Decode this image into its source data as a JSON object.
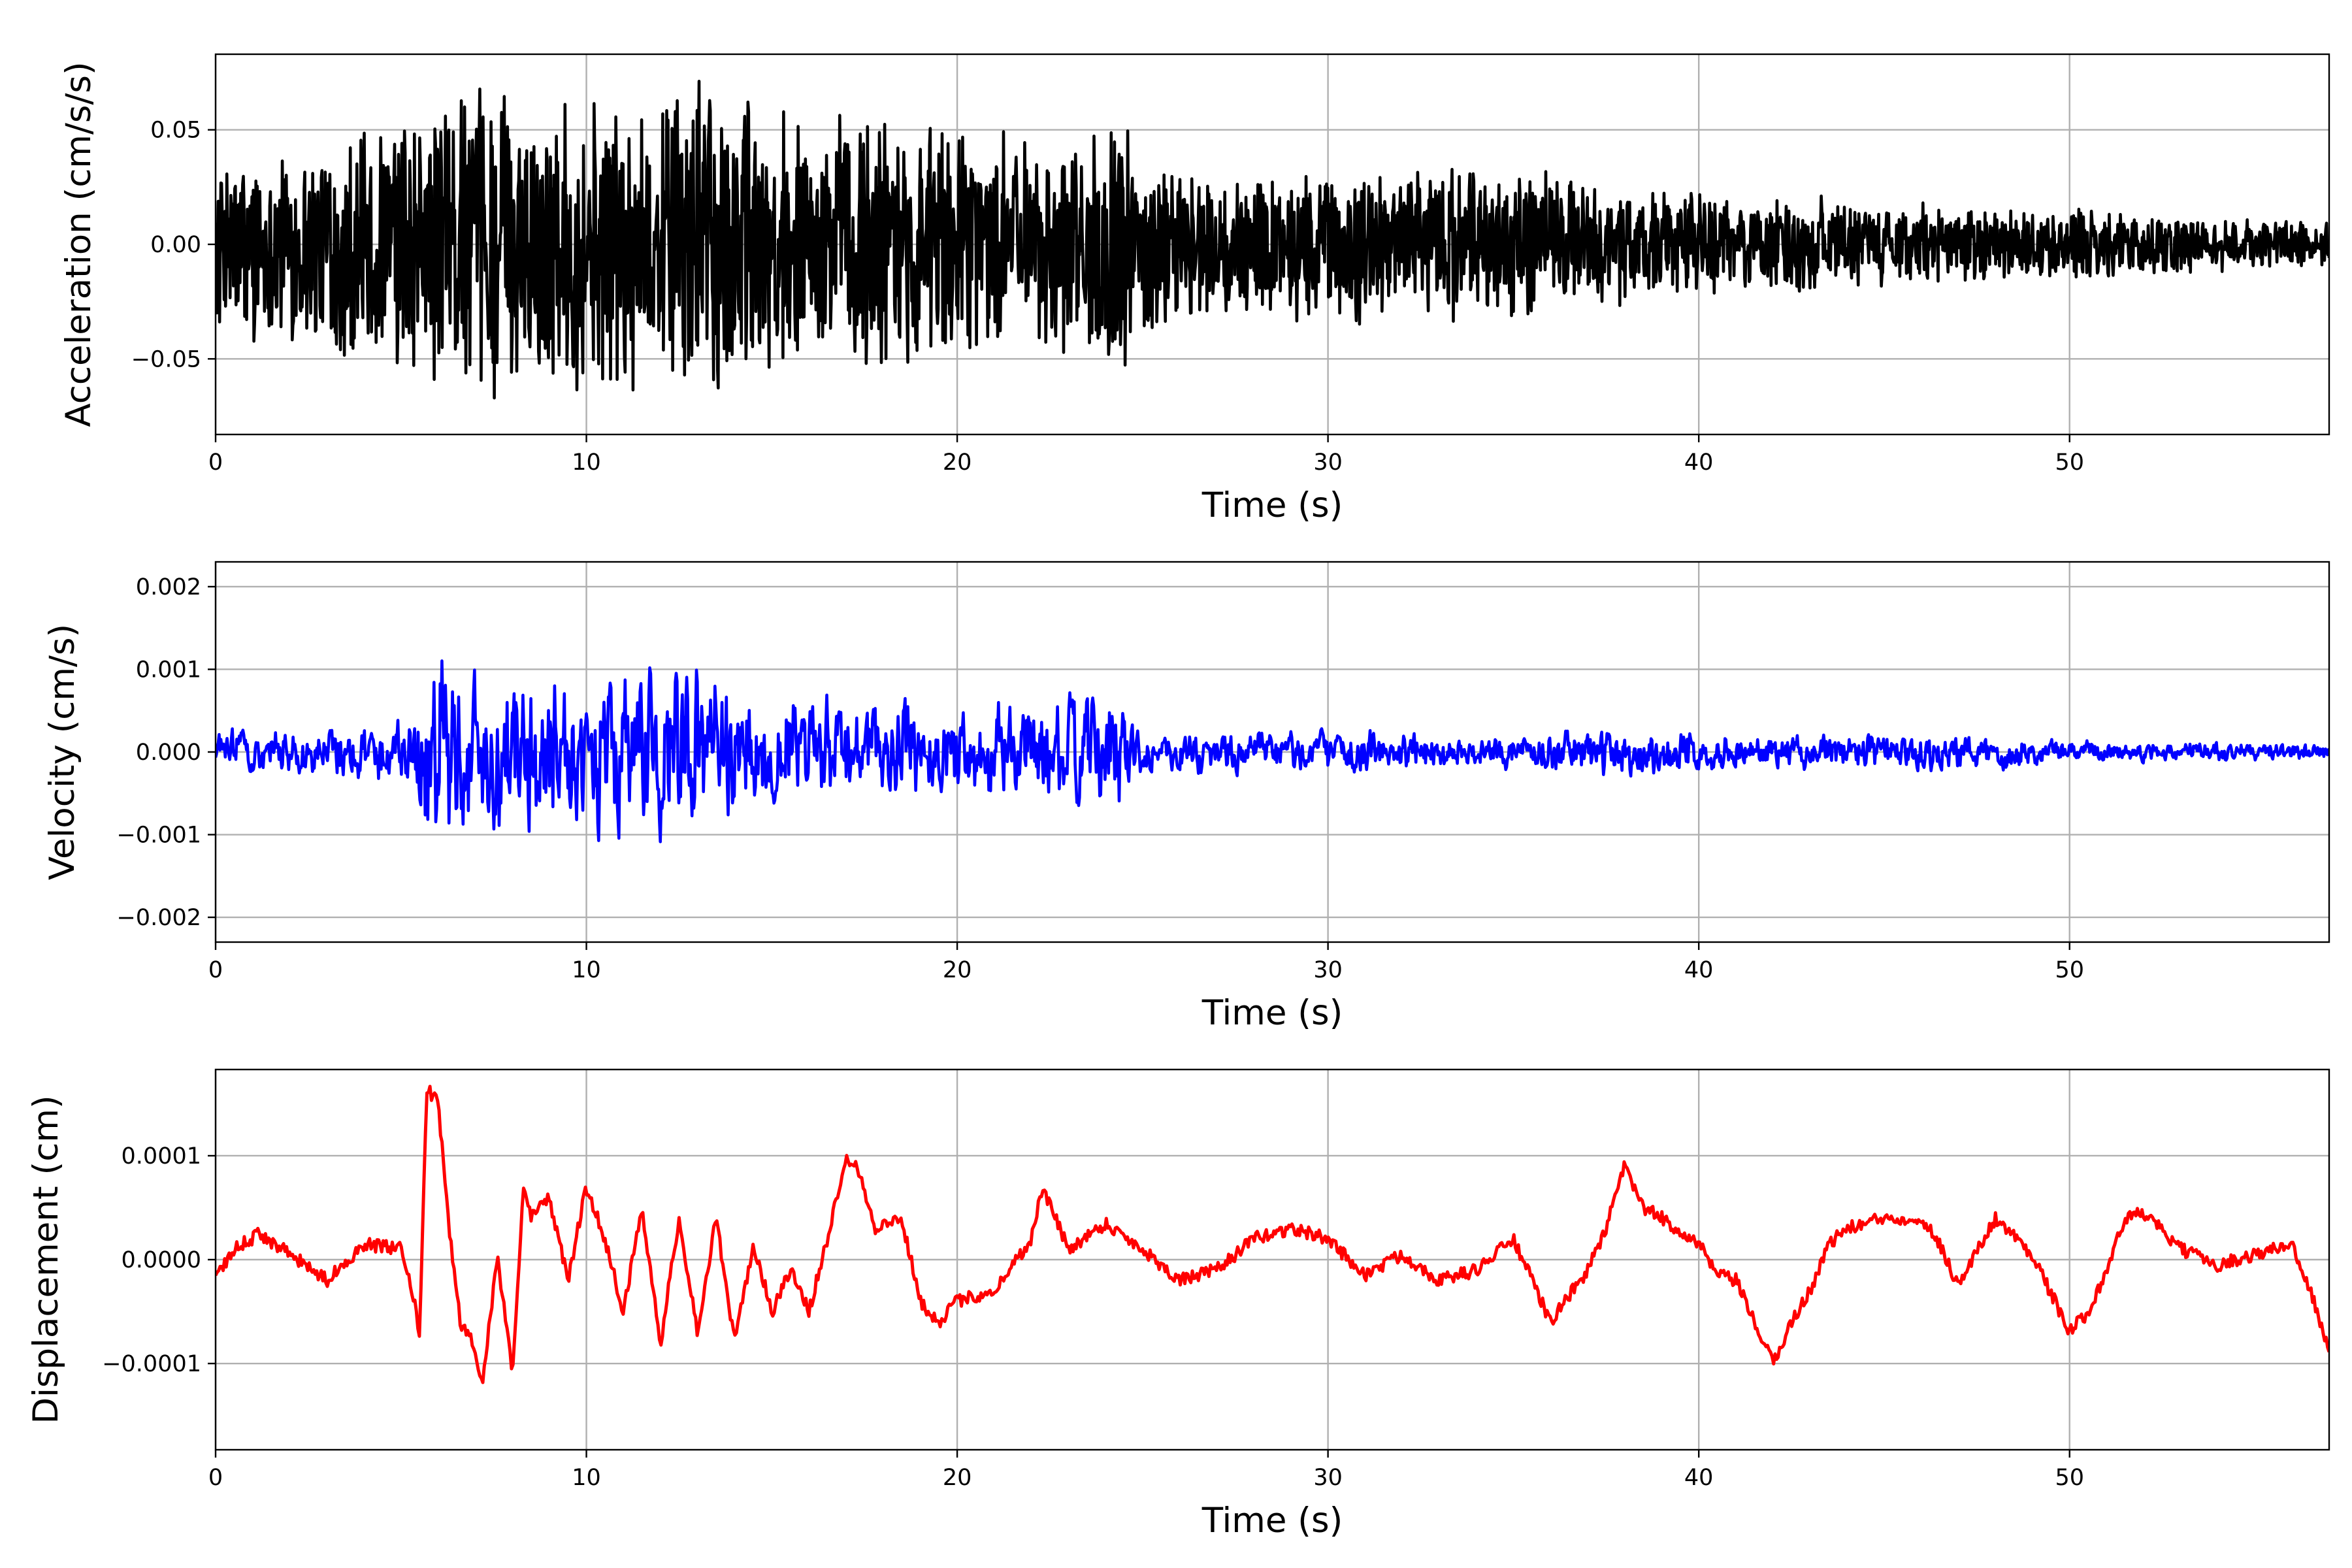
{
  "chart_data": [
    {
      "type": "line",
      "panel": "acceleration",
      "title": "",
      "xlabel": "Time (s)",
      "ylabel": "Acceleration (cm/s/s)",
      "xlim": [
        0,
        57
      ],
      "ylim": [
        -0.083,
        0.083
      ],
      "xticks": [
        0,
        10,
        20,
        30,
        40,
        50
      ],
      "yticks": [
        -0.05,
        0.0,
        0.05
      ],
      "ytick_labels": [
        "−0.05",
        "0.00",
        "0.05"
      ],
      "grid": true,
      "color": "#000000",
      "series": [
        {
          "x": [
            0,
            2,
            4,
            5.5,
            6,
            7,
            8,
            9,
            10,
            12,
            13.5,
            15,
            18,
            20,
            22,
            24.5,
            25,
            27,
            30,
            31,
            34.5,
            37,
            40,
            45,
            50,
            55,
            57
          ],
          "envelope": [
            0.04,
            0.045,
            0.055,
            0.06,
            0.075,
            0.07,
            0.07,
            0.068,
            0.065,
            0.07,
            0.075,
            0.06,
            0.062,
            0.055,
            0.05,
            0.058,
            0.04,
            0.034,
            0.034,
            0.038,
            0.036,
            0.03,
            0.024,
            0.02,
            0.016,
            0.012,
            0.01
          ]
        }
      ]
    },
    {
      "type": "line",
      "panel": "velocity",
      "title": "",
      "xlabel": "Time (s)",
      "ylabel": "Velocity (cm/s)",
      "xlim": [
        0,
        57
      ],
      "ylim": [
        -0.0023,
        0.0023
      ],
      "xticks": [
        0,
        10,
        20,
        30,
        40,
        50
      ],
      "yticks": [
        -0.002,
        -0.001,
        0.0,
        0.001,
        0.002
      ],
      "ytick_labels": [
        "−0.002",
        "−0.001",
        "0.000",
        "0.001",
        "0.002"
      ],
      "grid": true,
      "color": "#0000ff",
      "series": [
        {
          "x": [
            0,
            3,
            5.3,
            5.6,
            6.1,
            7,
            8,
            9,
            10,
            12.2,
            14,
            17,
            19.5,
            22,
            24.5,
            25,
            30,
            35,
            38,
            42,
            47,
            50,
            55,
            57
          ],
          "envelope": [
            0.0004,
            0.0005,
            0.0007,
            0.0018,
            0.0021,
            0.0016,
            0.0016,
            0.0015,
            0.0014,
            0.0018,
            0.0012,
            0.001,
            0.0009,
            0.0009,
            0.0012,
            0.0004,
            0.0004,
            0.0003,
            0.0005,
            0.0003,
            0.0004,
            0.0002,
            0.0002,
            0.00015
          ]
        }
      ]
    },
    {
      "type": "line",
      "panel": "displacement",
      "title": "",
      "xlabel": "Time (s)",
      "ylabel": "Displacement (cm)",
      "xlim": [
        0,
        57
      ],
      "ylim": [
        -0.000183,
        0.000183
      ],
      "xticks": [
        0,
        10,
        20,
        30,
        40,
        50
      ],
      "yticks": [
        -0.0001,
        0.0,
        0.0001
      ],
      "ytick_labels": [
        "−0.0001",
        "0.0000",
        "0.0001"
      ],
      "grid": true,
      "color": "#ff0000",
      "series": [
        {
          "x": [
            0,
            0.5,
            1.2,
            2,
            3,
            4,
            5,
            5.3,
            5.5,
            5.7,
            6,
            6.3,
            6.6,
            7,
            7.2,
            7.6,
            8,
            8.3,
            8.5,
            9,
            9.5,
            10,
            10.5,
            11,
            11.5,
            12,
            12.5,
            13,
            13.5,
            14,
            14.5,
            15,
            15.5,
            16,
            16.5,
            17,
            17.3,
            17.8,
            18.5,
            19,
            19.5,
            20,
            21,
            22,
            22.3,
            23,
            24,
            25,
            26,
            27,
            28,
            29,
            30,
            31,
            32,
            33,
            34,
            35,
            35.5,
            36,
            37,
            37.5,
            38,
            38.5,
            39,
            40,
            40.5,
            41,
            41.5,
            42,
            42.5,
            43,
            43.5,
            44,
            45,
            46,
            46.5,
            47,
            48,
            49,
            50,
            50.5,
            51,
            51.5,
            52,
            53,
            54,
            55,
            56,
            56.5,
            57
          ],
          "y": [
            -2e-05,
            1e-05,
            2.5e-05,
            5e-06,
            -2e-05,
            1.5e-05,
            1e-05,
            -3e-05,
            -7e-05,
            0.000165,
            0.00015,
            3e-05,
            -6e-05,
            -8.5e-05,
            -0.00012,
            5e-06,
            -0.00011,
            7e-05,
            4e-05,
            6e-05,
            -2e-05,
            7e-05,
            2e-05,
            -5e-05,
            5e-05,
            -8e-05,
            4e-05,
            -7e-05,
            4e-05,
            -8e-05,
            1.5e-05,
            -5e-05,
            -1e-05,
            -5e-05,
            2e-05,
            0.0001,
            9e-05,
            3e-05,
            4e-05,
            -4e-05,
            -6e-05,
            -4e-05,
            -3e-05,
            2e-05,
            7e-05,
            1e-05,
            3.5e-05,
            1e-05,
            -2e-05,
            -1e-05,
            2e-05,
            3e-05,
            2e-05,
            -1.5e-05,
            5e-06,
            -2e-05,
            -1e-05,
            2e-05,
            -2e-05,
            -6e-05,
            -1e-05,
            3e-05,
            9e-05,
            5e-05,
            4e-05,
            1.5e-05,
            -1.5e-05,
            -2e-05,
            -6e-05,
            -0.0001,
            -6e-05,
            -3e-05,
            1.5e-05,
            3e-05,
            4e-05,
            4e-05,
            1.5e-05,
            -2.5e-05,
            4e-05,
            5e-06,
            -7e-05,
            -5e-05,
            -1e-05,
            4e-05,
            4.5e-05,
            1e-05,
            -5e-06,
            5e-06,
            1.5e-05,
            -3e-05,
            -9e-05
          ]
        }
      ]
    }
  ]
}
